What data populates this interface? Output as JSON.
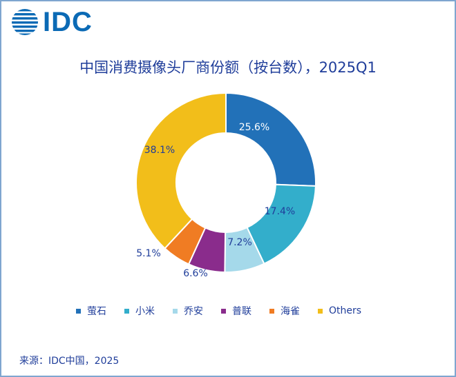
{
  "brand": {
    "name": "IDC",
    "color": "#0b6ab5"
  },
  "chart_data": {
    "type": "pie",
    "title": "中国消费摄像头厂商份额（按台数），2025Q1",
    "categories": [
      "萤石",
      "小米",
      "乔安",
      "普联",
      "海雀",
      "Others"
    ],
    "values": [
      25.6,
      17.4,
      7.2,
      6.6,
      5.1,
      38.1
    ],
    "labels": [
      "25.6%",
      "17.4%",
      "7.2%",
      "6.6%",
      "5.1%",
      "38.1%"
    ],
    "colors": [
      "#2271b8",
      "#33aecb",
      "#a5d9ea",
      "#8a2c8c",
      "#f07c23",
      "#f2be1a"
    ],
    "donut": true,
    "legend_position": "bottom"
  },
  "source": "来源：IDC中国，2025"
}
